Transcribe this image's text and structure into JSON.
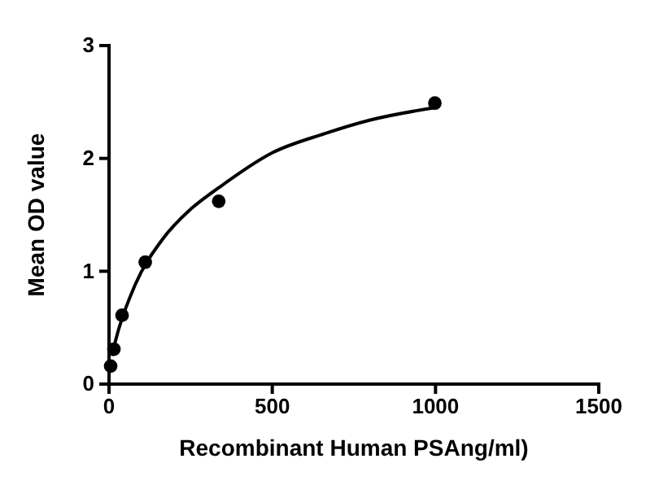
{
  "chart_data": {
    "type": "scatter",
    "xlabel": "Recombinant Human PSAng/ml)",
    "ylabel": "Mean OD value",
    "xlim": [
      0,
      1500
    ],
    "ylim": [
      0,
      3
    ],
    "xticks": [
      0,
      500,
      1000,
      1500
    ],
    "yticks": [
      0,
      1,
      2,
      3
    ],
    "grid": false,
    "marker": "circle",
    "series": [
      {
        "color": "#000000",
        "x": [
          5,
          15,
          40,
          111,
          336,
          998
        ],
        "values": [
          0.16,
          0.31,
          0.61,
          1.08,
          1.62,
          2.49
        ]
      },
      {
        "type": "line",
        "color": "#000000",
        "marker": "none",
        "x": [
          8,
          30,
          80,
          163,
          250,
          336,
          500,
          661,
          800,
          998
        ],
        "values": [
          0.25,
          0.49,
          0.88,
          1.28,
          1.55,
          1.74,
          2.05,
          2.22,
          2.34,
          2.45
        ]
      }
    ]
  }
}
